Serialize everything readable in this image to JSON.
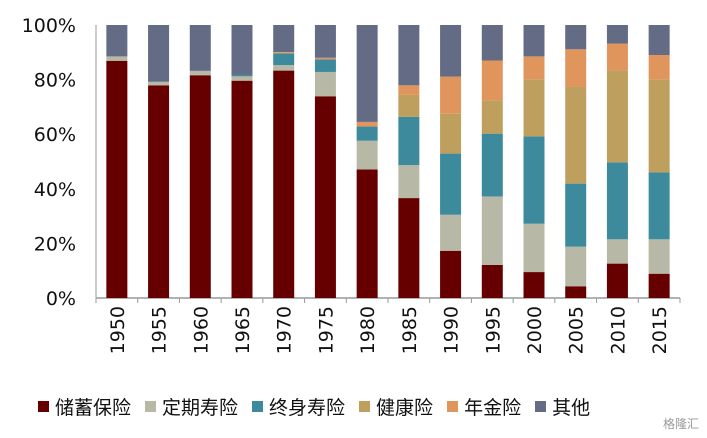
{
  "chart_data": {
    "type": "bar",
    "stacked": true,
    "title": "",
    "xlabel": "",
    "ylabel": "",
    "ylim": [
      0,
      100
    ],
    "yticks": [
      "0%",
      "20%",
      "40%",
      "60%",
      "80%",
      "100%"
    ],
    "categories": [
      "1950",
      "1955",
      "1960",
      "1965",
      "1970",
      "1975",
      "1980",
      "1985",
      "1990",
      "1995",
      "2000",
      "2005",
      "2010",
      "2015"
    ],
    "legend_position": "bottom",
    "series": [
      {
        "name": "储蓄保险",
        "color": "#660000",
        "values": [
          86.9,
          77.9,
          81.6,
          79.6,
          83.3,
          73.9,
          47.1,
          36.6,
          17.3,
          12.1,
          9.5,
          4.3,
          12.6,
          8.9
        ]
      },
      {
        "name": "定期寿险",
        "color": "#b8b8a6",
        "values": [
          1.6,
          1.3,
          1.6,
          1.6,
          2.0,
          8.9,
          10.5,
          12.1,
          13.2,
          25.1,
          17.7,
          14.5,
          8.9,
          12.6
        ]
      },
      {
        "name": "终身寿险",
        "color": "#3d8a9c",
        "values": [
          0,
          0,
          0,
          0.5,
          4.3,
          4.6,
          5.2,
          17.7,
          22.4,
          23.0,
          32.0,
          23.1,
          28.2,
          24.5
        ]
      },
      {
        "name": "健康险",
        "color": "#bf9f5d",
        "values": [
          0,
          0,
          0,
          0,
          0.2,
          0,
          0,
          8.0,
          14.6,
          12.1,
          20.9,
          35.4,
          33.6,
          34.1
        ]
      },
      {
        "name": "年金险",
        "color": "#e0955d",
        "values": [
          0,
          0,
          0,
          0,
          0.3,
          0.6,
          1.7,
          3.5,
          13.6,
          14.7,
          8.4,
          13.8,
          9.9,
          8.9
        ]
      },
      {
        "name": "其他",
        "color": "#636b85",
        "values": [
          11.5,
          20.8,
          16.8,
          18.3,
          9.9,
          12.0,
          35.5,
          22.1,
          18.9,
          13.0,
          11.5,
          8.9,
          6.8,
          11.0
        ]
      }
    ]
  },
  "watermark": "格隆汇"
}
